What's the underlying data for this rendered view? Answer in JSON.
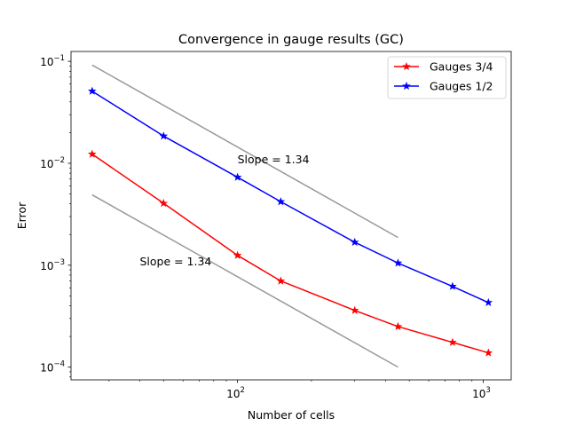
{
  "chart_data": {
    "type": "line",
    "title": "Convergence in gauge results (GC)",
    "xlabel": "Number of cells",
    "ylabel": "Error",
    "xscale": "log",
    "yscale": "log",
    "xlim": [
      21,
      1300
    ],
    "ylim": [
      7.5e-05,
      0.125
    ],
    "grid": false,
    "legend_position": "top-right",
    "x_ticks": [
      {
        "base": "10",
        "exp": "2",
        "value": 100
      },
      {
        "base": "10",
        "exp": "3",
        "value": 1000
      }
    ],
    "y_ticks": [
      {
        "base": "10",
        "exp": "−1",
        "value": 0.1
      },
      {
        "base": "10",
        "exp": "−2",
        "value": 0.01
      },
      {
        "base": "10",
        "exp": "−3",
        "value": 0.001
      },
      {
        "base": "10",
        "exp": "−4",
        "value": 0.0001
      }
    ],
    "series": [
      {
        "name": "Gauges 3/4",
        "color": "#ff0000",
        "marker": "star",
        "x": [
          25.6,
          50,
          100,
          150,
          300,
          450,
          750,
          1050
        ],
        "y": [
          0.0123,
          0.00405,
          0.00125,
          0.0007,
          0.00036,
          0.00025,
          0.000175,
          0.000138
        ]
      },
      {
        "name": "Gauges 1/2",
        "color": "#0000ff",
        "marker": "star",
        "x": [
          25.6,
          50,
          100,
          150,
          300,
          450,
          750,
          1050
        ],
        "y": [
          0.051,
          0.0185,
          0.0073,
          0.0042,
          0.00168,
          0.00105,
          0.00062,
          0.00043
        ]
      }
    ],
    "reference_lines": [
      {
        "name": "upper-slope-line",
        "color": "#999999",
        "x": [
          25.6,
          450
        ],
        "y": [
          0.092,
          0.00187
        ]
      },
      {
        "name": "lower-slope-line",
        "color": "#999999",
        "x": [
          25.6,
          450
        ],
        "y": [
          0.0049,
          0.0001
        ]
      }
    ],
    "annotations": [
      {
        "text": "Slope = 1.34",
        "x": 100,
        "y": 0.01
      },
      {
        "text": "Slope = 1.34",
        "x": 40,
        "y": 0.001
      }
    ]
  }
}
